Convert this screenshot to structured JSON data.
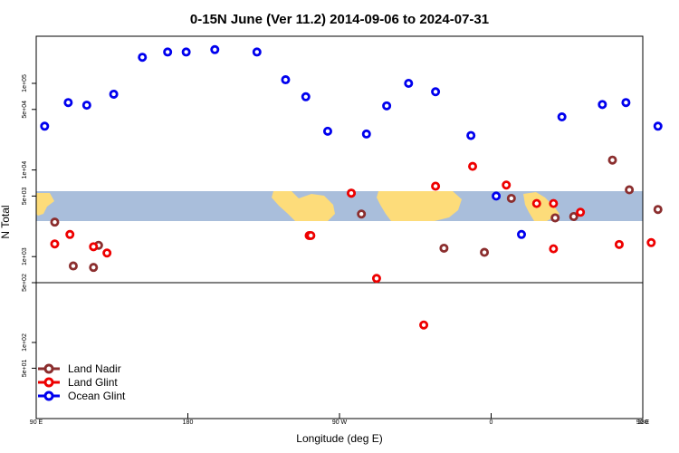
{
  "chart_data": {
    "type": "scatter",
    "title": "0-15N June (Ver 11.2)   2014-09-06 to 2024-07-31",
    "xlabel": "Longitude (deg E)",
    "ylabel": "N Total",
    "x_axis_sequence": [
      "90 E",
      "180",
      "90 W",
      "0",
      "90 E",
      "180"
    ],
    "x_range_deg": [
      90,
      450
    ],
    "x_ticks": [
      {
        "label": "90 E",
        "value": 90
      },
      {
        "label": "180",
        "value": 180
      },
      {
        "label": "90 W",
        "value": 270
      },
      {
        "label": "0",
        "value": 360
      },
      {
        "label": "90 E",
        "value": 450
      },
      {
        "label": "180",
        "value": 540
      }
    ],
    "y_scale_note": "upper panel log scale 5e+02 to ~4e+05; lower panel log scale ~1e+01 to 5e+02",
    "y_ticks_upper": [
      {
        "label": "1e+03",
        "value": 1000
      },
      {
        "label": "5e+03",
        "value": 5000
      },
      {
        "label": "1e+04",
        "value": 10000
      },
      {
        "label": "5e+04",
        "value": 50000
      },
      {
        "label": "1e+05",
        "value": 100000
      }
    ],
    "y_ticks_lower": [
      {
        "label": "5e+01",
        "value": 50
      },
      {
        "label": "1e+02",
        "value": 100
      },
      {
        "label": "5e+02",
        "value": 500
      }
    ],
    "legend": {
      "placement": "bottom-left",
      "entries": [
        "Land Nadir",
        "Land Glint",
        "Ocean Glint"
      ]
    },
    "series": [
      {
        "name": "Land Nadir",
        "color": "#8b2e2e",
        "x": [
          101,
          112,
          124,
          127,
          277,
          283,
          332,
          356,
          372,
          398,
          409,
          432,
          442,
          459,
          480,
          495,
          511,
          524
        ],
        "values": [
          2500,
          780,
          750,
          1350,
          5400,
          3100,
          1250,
          1120,
          4700,
          2800,
          2900,
          13000,
          5900,
          3500,
          1550,
          2300,
          780,
          1350
        ]
      },
      {
        "name": "Land Glint",
        "color": "#ee0000",
        "x": [
          101,
          110,
          124,
          132,
          252,
          253,
          277,
          292,
          320,
          327,
          349,
          369,
          387,
          397,
          397,
          413,
          436,
          455
        ],
        "values": [
          1400,
          1800,
          1300,
          1100,
          1750,
          1750,
          5400,
          560,
          160,
          6500,
          11000,
          6700,
          4100,
          4100,
          1230,
          3250,
          1380,
          1450
        ]
      },
      {
        "name": "Ocean Glint",
        "color": "#0000ee",
        "x": [
          95,
          109,
          120,
          136,
          153,
          168,
          179,
          196,
          221,
          238,
          250,
          263,
          286,
          298,
          311,
          327,
          348,
          363,
          378,
          402,
          426,
          440,
          459,
          476,
          489,
          506,
          524,
          540,
          565
        ],
        "values": [
          32000,
          60000,
          56000,
          75000,
          200000,
          230000,
          230000,
          245000,
          230000,
          110000,
          70000,
          28000,
          26000,
          55000,
          100000,
          80000,
          25000,
          5000,
          1800,
          41000,
          57000,
          60000,
          32000,
          62000,
          56000,
          75000,
          200000,
          230000,
          230000
        ]
      }
    ]
  }
}
